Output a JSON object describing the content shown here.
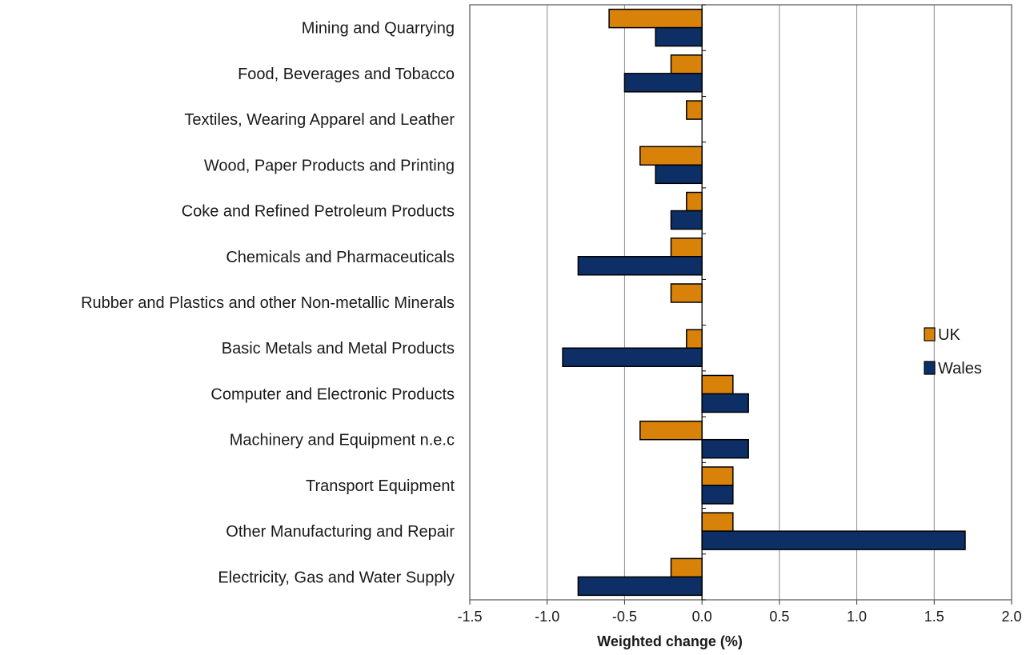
{
  "chart_data": {
    "type": "bar",
    "orientation": "horizontal",
    "categories": [
      "Mining and Quarrying",
      "Food, Beverages and Tobacco",
      "Textiles, Wearing Apparel and Leather",
      "Wood, Paper Products and Printing",
      "Coke and Refined Petroleum Products",
      "Chemicals and Pharmaceuticals",
      "Rubber and Plastics and other Non-metallic Minerals",
      "Basic Metals and Metal Products",
      "Computer and Electronic Products",
      "Machinery and Equipment n.e.c",
      "Transport Equipment",
      "Other Manufacturing and Repair",
      "Electricity, Gas and Water Supply"
    ],
    "series": [
      {
        "name": "UK",
        "color": "#d9820a",
        "values": [
          -0.6,
          -0.2,
          -0.1,
          -0.4,
          -0.1,
          -0.2,
          -0.2,
          -0.1,
          0.2,
          -0.4,
          0.2,
          0.2,
          -0.2
        ]
      },
      {
        "name": "Wales",
        "color": "#0d2f66",
        "values": [
          -0.3,
          -0.5,
          0.0,
          -0.3,
          -0.2,
          -0.8,
          0.0,
          -0.9,
          0.3,
          0.3,
          0.2,
          1.7,
          -0.8
        ]
      }
    ],
    "xlabel": "Weighted change (%)",
    "xlim": [
      -1.5,
      2.0
    ],
    "xticks": [
      "-1.5",
      "-1.0",
      "-0.5",
      "0.0",
      "0.5",
      "1.0",
      "1.5",
      "2.0"
    ],
    "grid": "vertical",
    "legend_position": "right"
  }
}
